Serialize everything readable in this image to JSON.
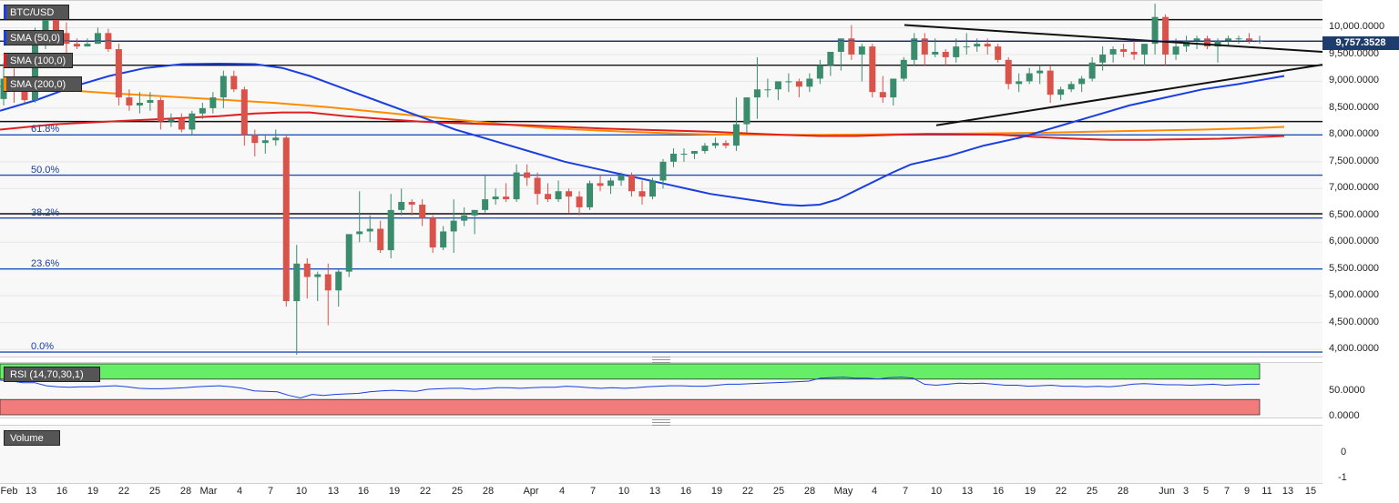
{
  "chart_data": {
    "type": "candlestick",
    "symbol": "BTC/USD",
    "price_axis": {
      "ticks": [
        "10,000.0000",
        "9,500.0000",
        "9,000.0000",
        "8,500.0000",
        "8,000.0000",
        "7,500.0000",
        "7,000.0000",
        "6,500.0000",
        "6,000.0000",
        "5,500.0000",
        "5,000.0000",
        "4,500.0000",
        "4,000.0000"
      ],
      "range": [
        3900,
        10500
      ]
    },
    "last_price": "9,757.3528",
    "x_ticks": [
      "Feb",
      "13",
      "16",
      "19",
      "22",
      "25",
      "28",
      "Mar",
      "4",
      "7",
      "10",
      "13",
      "16",
      "19",
      "22",
      "25",
      "28",
      "Apr",
      "4",
      "7",
      "10",
      "13",
      "16",
      "19",
      "22",
      "25",
      "28",
      "May",
      "4",
      "7",
      "10",
      "13",
      "16",
      "19",
      "22",
      "25",
      "28",
      "Jun",
      "3",
      "5",
      "7",
      "9",
      "11",
      "13",
      "15"
    ],
    "indicators": [
      {
        "label": "SMA (50,0)",
        "color": "#1a3ee0"
      },
      {
        "label": "SMA (100,0)",
        "color": "#e02020"
      },
      {
        "label": "SMA (200,0)",
        "color": "#ff8c00"
      }
    ],
    "fibonacci": [
      {
        "label": "61.8%",
        "value": 8000
      },
      {
        "label": "50.0%",
        "value": 7250
      },
      {
        "label": "38.2%",
        "value": 6450
      },
      {
        "label": "23.6%",
        "value": 5500
      },
      {
        "label": "0.0%",
        "value": 3950
      }
    ],
    "horizontal_levels": [
      10150,
      9750,
      9300,
      8250,
      6530
    ],
    "candles": [
      [
        8670,
        9340,
        8550,
        9050
      ],
      [
        9050,
        9240,
        8600,
        8900
      ],
      [
        8900,
        9000,
        8600,
        8650
      ],
      [
        8650,
        10000,
        8600,
        9850
      ],
      [
        9850,
        10400,
        9600,
        10200
      ],
      [
        10200,
        10300,
        9800,
        9900
      ],
      [
        9900,
        10100,
        9500,
        9700
      ],
      [
        9700,
        9800,
        9600,
        9650
      ],
      [
        9650,
        9800,
        9650,
        9700
      ],
      [
        9700,
        10000,
        9700,
        9900
      ],
      [
        9900,
        9980,
        9550,
        9600
      ],
      [
        9600,
        9700,
        8550,
        8700
      ],
      [
        8700,
        8850,
        8450,
        8550
      ],
      [
        8550,
        8800,
        8400,
        8600
      ],
      [
        8600,
        8800,
        8450,
        8650
      ],
      [
        8650,
        8700,
        8100,
        8250
      ],
      [
        8250,
        8400,
        8150,
        8300
      ],
      [
        8300,
        8400,
        8050,
        8100
      ],
      [
        8100,
        8450,
        8000,
        8400
      ],
      [
        8400,
        8600,
        8300,
        8500
      ],
      [
        8500,
        8800,
        8400,
        8700
      ],
      [
        8700,
        9200,
        8500,
        9100
      ],
      [
        9100,
        9200,
        8800,
        8850
      ],
      [
        8850,
        8900,
        7800,
        8000
      ],
      [
        8000,
        8100,
        7600,
        7850
      ],
      [
        7850,
        8000,
        7650,
        7900
      ],
      [
        7900,
        8100,
        7800,
        7950
      ],
      [
        7950,
        8000,
        4800,
        4900
      ],
      [
        4900,
        5950,
        3900,
        5600
      ],
      [
        5600,
        5700,
        4950,
        5350
      ],
      [
        5350,
        5450,
        4900,
        5400
      ],
      [
        5400,
        5600,
        4450,
        5100
      ],
      [
        5100,
        5500,
        4800,
        5450
      ],
      [
        5450,
        6100,
        5350,
        6150
      ],
      [
        6150,
        6950,
        6000,
        6200
      ],
      [
        6200,
        6500,
        6000,
        6250
      ],
      [
        6250,
        6400,
        5800,
        5850
      ],
      [
        5850,
        6900,
        5700,
        6600
      ],
      [
        6600,
        7000,
        6500,
        6750
      ],
      [
        6750,
        6800,
        6500,
        6700
      ],
      [
        6700,
        6800,
        6300,
        6450
      ],
      [
        6450,
        6500,
        5800,
        5900
      ],
      [
        5900,
        6300,
        5850,
        6200
      ],
      [
        6200,
        6800,
        5800,
        6400
      ],
      [
        6400,
        6650,
        6300,
        6500
      ],
      [
        6500,
        6600,
        6150,
        6600
      ],
      [
        6600,
        7250,
        6550,
        6800
      ],
      [
        6800,
        7000,
        6700,
        6850
      ],
      [
        6850,
        7100,
        6750,
        6800
      ],
      [
        6800,
        7450,
        6750,
        7300
      ],
      [
        7300,
        7450,
        7050,
        7200
      ],
      [
        7200,
        7300,
        6700,
        6900
      ],
      [
        6900,
        7100,
        6750,
        6800
      ],
      [
        6800,
        7150,
        6750,
        6950
      ],
      [
        6950,
        7000,
        6550,
        6850
      ],
      [
        6850,
        6950,
        6500,
        6650
      ],
      [
        6650,
        7150,
        6600,
        7100
      ],
      [
        7100,
        7250,
        6950,
        7050
      ],
      [
        7050,
        7200,
        6900,
        7150
      ],
      [
        7150,
        7300,
        7050,
        7250
      ],
      [
        7250,
        7300,
        6850,
        6950
      ],
      [
        6950,
        7150,
        6700,
        6850
      ],
      [
        6850,
        7200,
        6800,
        7150
      ],
      [
        7150,
        7550,
        7000,
        7500
      ],
      [
        7500,
        7750,
        7400,
        7650
      ],
      [
        7650,
        7750,
        7500,
        7650
      ],
      [
        7650,
        7700,
        7550,
        7700
      ],
      [
        7700,
        7850,
        7650,
        7800
      ],
      [
        7800,
        7950,
        7750,
        7850
      ],
      [
        7850,
        7900,
        7750,
        7800
      ],
      [
        7800,
        8700,
        7700,
        8200
      ],
      [
        8200,
        8700,
        8050,
        8700
      ],
      [
        8700,
        9450,
        8300,
        8850
      ],
      [
        8850,
        9050,
        8700,
        8850
      ],
      [
        8850,
        9000,
        8650,
        9000
      ],
      [
        9000,
        9150,
        8800,
        9000
      ],
      [
        9000,
        9050,
        8700,
        8900
      ],
      [
        8900,
        9150,
        8800,
        9050
      ],
      [
        9050,
        9400,
        8950,
        9300
      ],
      [
        9300,
        9550,
        9100,
        9550
      ],
      [
        9550,
        9800,
        9200,
        9800
      ],
      [
        9800,
        10050,
        9400,
        9500
      ],
      [
        9500,
        9700,
        9000,
        9650
      ],
      [
        9650,
        9700,
        8700,
        8800
      ],
      [
        8800,
        9100,
        8600,
        8700
      ],
      [
        8700,
        9000,
        8550,
        9050
      ],
      [
        9050,
        9450,
        9000,
        9400
      ],
      [
        9400,
        9900,
        9300,
        9800
      ],
      [
        9800,
        9900,
        9300,
        9500
      ],
      [
        9500,
        9800,
        9450,
        9550
      ],
      [
        9550,
        9600,
        9300,
        9450
      ],
      [
        9450,
        9800,
        9350,
        9650
      ],
      [
        9650,
        9900,
        9500,
        9650
      ],
      [
        9650,
        9800,
        9550,
        9700
      ],
      [
        9700,
        9800,
        9500,
        9650
      ],
      [
        9650,
        9700,
        9350,
        9400
      ],
      [
        9400,
        9450,
        8850,
        8950
      ],
      [
        8950,
        9150,
        8800,
        9000
      ],
      [
        9000,
        9250,
        8950,
        9150
      ],
      [
        9150,
        9300,
        8950,
        9200
      ],
      [
        9200,
        9300,
        8600,
        8750
      ],
      [
        8750,
        8900,
        8650,
        8850
      ],
      [
        8850,
        9000,
        8800,
        8950
      ],
      [
        8950,
        9100,
        8800,
        9050
      ],
      [
        9050,
        9450,
        9000,
        9350
      ],
      [
        9350,
        9650,
        9200,
        9500
      ],
      [
        9500,
        9650,
        9350,
        9600
      ],
      [
        9600,
        9700,
        9450,
        9550
      ],
      [
        9550,
        9800,
        9400,
        9500
      ],
      [
        9500,
        9700,
        9300,
        9700
      ],
      [
        9700,
        10450,
        9500,
        10200
      ],
      [
        10200,
        10250,
        9300,
        9500
      ],
      [
        9500,
        9800,
        9400,
        9650
      ],
      [
        9650,
        9850,
        9550,
        9750
      ],
      [
        9750,
        9850,
        9600,
        9800
      ],
      [
        9800,
        9850,
        9600,
        9650
      ],
      [
        9650,
        9800,
        9350,
        9750
      ],
      [
        9750,
        9850,
        9650,
        9800
      ],
      [
        9800,
        9850,
        9700,
        9800
      ],
      [
        9800,
        9900,
        9700,
        9750
      ],
      [
        9750,
        9850,
        9700,
        9760
      ]
    ],
    "sma50": [
      [
        0,
        8450
      ],
      [
        40,
        8650
      ],
      [
        80,
        8900
      ],
      [
        120,
        9100
      ],
      [
        160,
        9250
      ],
      [
        200,
        9320
      ],
      [
        240,
        9330
      ],
      [
        280,
        9320
      ],
      [
        310,
        9250
      ],
      [
        340,
        9100
      ],
      [
        380,
        8850
      ],
      [
        420,
        8600
      ],
      [
        460,
        8350
      ],
      [
        500,
        8100
      ],
      [
        540,
        7900
      ],
      [
        580,
        7700
      ],
      [
        620,
        7500
      ],
      [
        660,
        7350
      ],
      [
        700,
        7200
      ],
      [
        740,
        7050
      ],
      [
        780,
        6900
      ],
      [
        820,
        6800
      ],
      [
        860,
        6700
      ],
      [
        880,
        6680
      ],
      [
        900,
        6700
      ],
      [
        920,
        6800
      ],
      [
        950,
        7050
      ],
      [
        980,
        7300
      ],
      [
        1000,
        7450
      ],
      [
        1040,
        7600
      ],
      [
        1080,
        7800
      ],
      [
        1120,
        7950
      ],
      [
        1160,
        8150
      ],
      [
        1200,
        8350
      ],
      [
        1240,
        8550
      ],
      [
        1280,
        8700
      ],
      [
        1320,
        8850
      ],
      [
        1360,
        8950
      ],
      [
        1410,
        9100
      ]
    ],
    "sma100": [
      [
        0,
        8100
      ],
      [
        60,
        8200
      ],
      [
        120,
        8250
      ],
      [
        180,
        8300
      ],
      [
        240,
        8350
      ],
      [
        280,
        8400
      ],
      [
        310,
        8420
      ],
      [
        340,
        8420
      ],
      [
        380,
        8350
      ],
      [
        420,
        8300
      ],
      [
        460,
        8250
      ],
      [
        500,
        8220
      ],
      [
        540,
        8200
      ],
      [
        580,
        8180
      ],
      [
        620,
        8150
      ],
      [
        660,
        8120
      ],
      [
        700,
        8100
      ],
      [
        740,
        8080
      ],
      [
        780,
        8060
      ],
      [
        820,
        8030
      ],
      [
        860,
        8000
      ],
      [
        900,
        7980
      ],
      [
        940,
        7980
      ],
      [
        980,
        8000
      ],
      [
        1020,
        8020
      ],
      [
        1060,
        8010
      ],
      [
        1100,
        8000
      ],
      [
        1140,
        7960
      ],
      [
        1180,
        7930
      ],
      [
        1220,
        7910
      ],
      [
        1260,
        7910
      ],
      [
        1300,
        7920
      ],
      [
        1340,
        7930
      ],
      [
        1380,
        7960
      ],
      [
        1410,
        7980
      ]
    ],
    "sma200": [
      [
        0,
        8900
      ],
      [
        60,
        8850
      ],
      [
        120,
        8780
      ],
      [
        180,
        8720
      ],
      [
        240,
        8660
      ],
      [
        300,
        8600
      ],
      [
        360,
        8520
      ],
      [
        420,
        8420
      ],
      [
        480,
        8320
      ],
      [
        540,
        8220
      ],
      [
        600,
        8130
      ],
      [
        660,
        8080
      ],
      [
        720,
        8040
      ],
      [
        780,
        8010
      ],
      [
        840,
        8000
      ],
      [
        900,
        8000
      ],
      [
        960,
        8010
      ],
      [
        1020,
        8020
      ],
      [
        1080,
        8030
      ],
      [
        1140,
        8040
      ],
      [
        1200,
        8060
      ],
      [
        1260,
        8080
      ],
      [
        1320,
        8100
      ],
      [
        1380,
        8130
      ],
      [
        1410,
        8150
      ]
    ],
    "trendlines": [
      {
        "from": [
          993,
          10050
        ],
        "to": [
          1452,
          9550
        ]
      },
      {
        "from": [
          1028,
          8180
        ],
        "to": [
          1452,
          9310
        ]
      }
    ],
    "rsi": {
      "label": "RSI (14,70,30,1)",
      "overbought": 70,
      "oversold": 30,
      "ticks": [
        "50.0000",
        "0.0000"
      ],
      "values": [
        68,
        66,
        63,
        63,
        57,
        55,
        54,
        55,
        55,
        56,
        57,
        55,
        52,
        51,
        51,
        52,
        53,
        55,
        56,
        57,
        55,
        52,
        47,
        46,
        45,
        38,
        33,
        40,
        38,
        40,
        41,
        42,
        45,
        47,
        48,
        47,
        46,
        50,
        51,
        52,
        52,
        50,
        51,
        53,
        53,
        52,
        53,
        54,
        54,
        56,
        55,
        53,
        52,
        53,
        52,
        53,
        55,
        56,
        57,
        57,
        56,
        56,
        58,
        60,
        60,
        61,
        62,
        63,
        64,
        65,
        66,
        72,
        73,
        74,
        72,
        72,
        70,
        73,
        74,
        72,
        60,
        58,
        60,
        62,
        61,
        62,
        60,
        58,
        58,
        56,
        57,
        58,
        56,
        56,
        55,
        56,
        55,
        57,
        60,
        61,
        60,
        59,
        59,
        58,
        59,
        60,
        58,
        59,
        60,
        60
      ]
    },
    "volume": {
      "label": "Volume",
      "ticks": [
        "0",
        "-1"
      ]
    }
  }
}
